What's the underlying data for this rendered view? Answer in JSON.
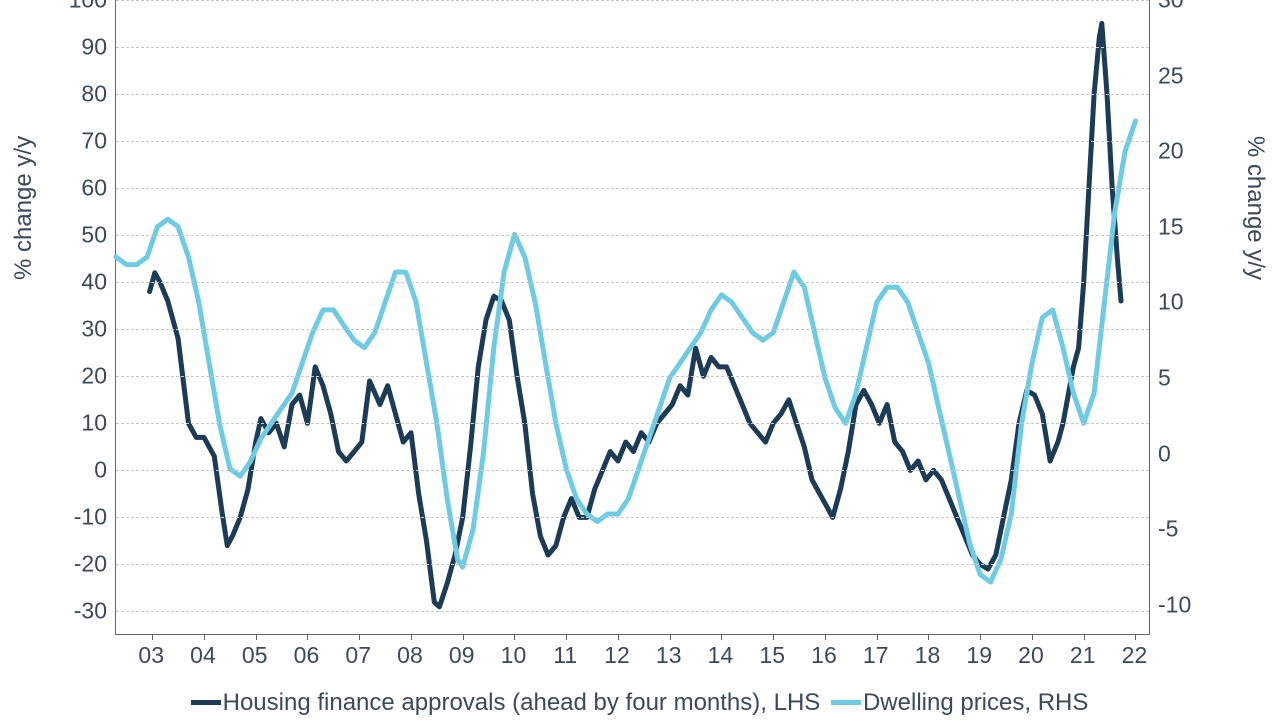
{
  "chart": {
    "type": "line-dual-axis",
    "background_color": "#ffffff",
    "grid_color": "#c8c8c8",
    "axis_color": "#666666",
    "text_color": "#3a4a58",
    "tick_fontsize": 23,
    "axis_label_fontsize": 24,
    "legend_fontsize": 24,
    "line_width": 5,
    "font_family": "Segoe UI, Verdana, Arial, sans-serif",
    "x_axis": {
      "min": 2002.3,
      "max": 2022.3,
      "ticks": [
        "03",
        "04",
        "05",
        "06",
        "07",
        "08",
        "09",
        "10",
        "11",
        "12",
        "13",
        "14",
        "15",
        "16",
        "17",
        "18",
        "19",
        "20",
        "21",
        "22"
      ],
      "tick_positions": [
        2003,
        2004,
        2005,
        2006,
        2007,
        2008,
        2009,
        2010,
        2011,
        2012,
        2013,
        2014,
        2015,
        2016,
        2017,
        2018,
        2019,
        2020,
        2021,
        2022
      ]
    },
    "y_left": {
      "label": "% change y/y",
      "min": -35,
      "max": 100,
      "ticks": [
        -30,
        -20,
        -10,
        0,
        10,
        20,
        30,
        40,
        50,
        60,
        70,
        80,
        90,
        100
      ]
    },
    "y_right": {
      "label": "% change y/y",
      "min": -12,
      "max": 30,
      "ticks": [
        -10,
        -5,
        0,
        5,
        10,
        15,
        20,
        25,
        30
      ]
    },
    "series": [
      {
        "name": "Housing finance approvals (ahead by four months), LHS",
        "color": "#1b3b57",
        "axis": "left",
        "data": [
          [
            2002.95,
            38
          ],
          [
            2003.05,
            42
          ],
          [
            2003.15,
            40
          ],
          [
            2003.3,
            36
          ],
          [
            2003.5,
            28
          ],
          [
            2003.7,
            10
          ],
          [
            2003.85,
            7
          ],
          [
            2004.0,
            7
          ],
          [
            2004.2,
            3
          ],
          [
            2004.35,
            -9
          ],
          [
            2004.45,
            -16
          ],
          [
            2004.55,
            -14
          ],
          [
            2004.7,
            -10
          ],
          [
            2004.85,
            -4
          ],
          [
            2005.0,
            6
          ],
          [
            2005.1,
            11
          ],
          [
            2005.25,
            8
          ],
          [
            2005.4,
            10
          ],
          [
            2005.55,
            5
          ],
          [
            2005.7,
            14
          ],
          [
            2005.85,
            16
          ],
          [
            2006.0,
            10
          ],
          [
            2006.15,
            22
          ],
          [
            2006.3,
            18
          ],
          [
            2006.45,
            12
          ],
          [
            2006.6,
            4
          ],
          [
            2006.75,
            2
          ],
          [
            2006.9,
            4
          ],
          [
            2007.05,
            6
          ],
          [
            2007.2,
            19
          ],
          [
            2007.4,
            14
          ],
          [
            2007.55,
            18
          ],
          [
            2007.7,
            12
          ],
          [
            2007.85,
            6
          ],
          [
            2008.0,
            8
          ],
          [
            2008.15,
            -5
          ],
          [
            2008.3,
            -15
          ],
          [
            2008.45,
            -28
          ],
          [
            2008.55,
            -29
          ],
          [
            2008.7,
            -24
          ],
          [
            2008.85,
            -18
          ],
          [
            2009.0,
            -10
          ],
          [
            2009.15,
            5
          ],
          [
            2009.3,
            22
          ],
          [
            2009.45,
            32
          ],
          [
            2009.6,
            37
          ],
          [
            2009.75,
            36
          ],
          [
            2009.9,
            32
          ],
          [
            2010.05,
            20
          ],
          [
            2010.2,
            10
          ],
          [
            2010.35,
            -5
          ],
          [
            2010.5,
            -14
          ],
          [
            2010.65,
            -18
          ],
          [
            2010.8,
            -16
          ],
          [
            2010.95,
            -10
          ],
          [
            2011.1,
            -6
          ],
          [
            2011.25,
            -10
          ],
          [
            2011.4,
            -10
          ],
          [
            2011.55,
            -4
          ],
          [
            2011.7,
            0
          ],
          [
            2011.85,
            4
          ],
          [
            2012.0,
            2
          ],
          [
            2012.15,
            6
          ],
          [
            2012.3,
            4
          ],
          [
            2012.45,
            8
          ],
          [
            2012.6,
            6
          ],
          [
            2012.75,
            10
          ],
          [
            2012.9,
            12
          ],
          [
            2013.05,
            14
          ],
          [
            2013.2,
            18
          ],
          [
            2013.35,
            16
          ],
          [
            2013.5,
            26
          ],
          [
            2013.65,
            20
          ],
          [
            2013.8,
            24
          ],
          [
            2013.95,
            22
          ],
          [
            2014.1,
            22
          ],
          [
            2014.25,
            18
          ],
          [
            2014.4,
            14
          ],
          [
            2014.55,
            10
          ],
          [
            2014.7,
            8
          ],
          [
            2014.85,
            6
          ],
          [
            2015.0,
            10
          ],
          [
            2015.15,
            12
          ],
          [
            2015.3,
            15
          ],
          [
            2015.45,
            10
          ],
          [
            2015.6,
            5
          ],
          [
            2015.75,
            -2
          ],
          [
            2015.9,
            -5
          ],
          [
            2016.05,
            -8
          ],
          [
            2016.15,
            -10
          ],
          [
            2016.3,
            -4
          ],
          [
            2016.45,
            4
          ],
          [
            2016.6,
            14
          ],
          [
            2016.75,
            17
          ],
          [
            2016.9,
            14
          ],
          [
            2017.05,
            10
          ],
          [
            2017.2,
            14
          ],
          [
            2017.35,
            6
          ],
          [
            2017.5,
            4
          ],
          [
            2017.65,
            0
          ],
          [
            2017.8,
            2
          ],
          [
            2017.95,
            -2
          ],
          [
            2018.1,
            0
          ],
          [
            2018.25,
            -2
          ],
          [
            2018.4,
            -6
          ],
          [
            2018.55,
            -10
          ],
          [
            2018.7,
            -14
          ],
          [
            2018.85,
            -18
          ],
          [
            2019.0,
            -20
          ],
          [
            2019.15,
            -21
          ],
          [
            2019.3,
            -18
          ],
          [
            2019.45,
            -10
          ],
          [
            2019.6,
            -2
          ],
          [
            2019.75,
            10
          ],
          [
            2019.9,
            17
          ],
          [
            2020.05,
            16
          ],
          [
            2020.2,
            12
          ],
          [
            2020.35,
            2
          ],
          [
            2020.5,
            6
          ],
          [
            2020.6,
            10
          ],
          [
            2020.7,
            16
          ],
          [
            2020.8,
            22
          ],
          [
            2020.9,
            26
          ],
          [
            2021.0,
            40
          ],
          [
            2021.1,
            60
          ],
          [
            2021.2,
            80
          ],
          [
            2021.3,
            92
          ],
          [
            2021.35,
            95
          ],
          [
            2021.45,
            80
          ],
          [
            2021.55,
            60
          ],
          [
            2021.65,
            45
          ],
          [
            2021.72,
            36
          ]
        ]
      },
      {
        "name": "Dwelling prices, RHS",
        "color": "#6fcbe3",
        "axis": "right",
        "data": [
          [
            2002.3,
            13
          ],
          [
            2002.5,
            12.5
          ],
          [
            2002.7,
            12.5
          ],
          [
            2002.9,
            13
          ],
          [
            2003.1,
            15
          ],
          [
            2003.3,
            15.5
          ],
          [
            2003.5,
            15
          ],
          [
            2003.7,
            13
          ],
          [
            2003.9,
            10
          ],
          [
            2004.1,
            6
          ],
          [
            2004.3,
            2
          ],
          [
            2004.5,
            -1
          ],
          [
            2004.7,
            -1.5
          ],
          [
            2004.9,
            -0.5
          ],
          [
            2005.1,
            1
          ],
          [
            2005.3,
            2
          ],
          [
            2005.5,
            3
          ],
          [
            2005.7,
            4
          ],
          [
            2005.9,
            6
          ],
          [
            2006.1,
            8
          ],
          [
            2006.3,
            9.5
          ],
          [
            2006.5,
            9.5
          ],
          [
            2006.7,
            8.5
          ],
          [
            2006.9,
            7.5
          ],
          [
            2007.1,
            7
          ],
          [
            2007.3,
            8
          ],
          [
            2007.5,
            10
          ],
          [
            2007.7,
            12
          ],
          [
            2007.9,
            12
          ],
          [
            2008.1,
            10
          ],
          [
            2008.3,
            6
          ],
          [
            2008.5,
            2
          ],
          [
            2008.7,
            -3
          ],
          [
            2008.9,
            -7
          ],
          [
            2009.0,
            -7.5
          ],
          [
            2009.2,
            -5
          ],
          [
            2009.4,
            0
          ],
          [
            2009.6,
            7
          ],
          [
            2009.8,
            12
          ],
          [
            2010.0,
            14.5
          ],
          [
            2010.2,
            13
          ],
          [
            2010.4,
            10
          ],
          [
            2010.6,
            6
          ],
          [
            2010.8,
            2
          ],
          [
            2011.0,
            -1
          ],
          [
            2011.2,
            -3
          ],
          [
            2011.4,
            -4
          ],
          [
            2011.6,
            -4.5
          ],
          [
            2011.8,
            -4
          ],
          [
            2012.0,
            -4
          ],
          [
            2012.2,
            -3
          ],
          [
            2012.4,
            -1
          ],
          [
            2012.6,
            1
          ],
          [
            2012.8,
            3
          ],
          [
            2013.0,
            5
          ],
          [
            2013.2,
            6
          ],
          [
            2013.4,
            7
          ],
          [
            2013.6,
            8
          ],
          [
            2013.8,
            9.5
          ],
          [
            2014.0,
            10.5
          ],
          [
            2014.2,
            10
          ],
          [
            2014.4,
            9
          ],
          [
            2014.6,
            8
          ],
          [
            2014.8,
            7.5
          ],
          [
            2015.0,
            8
          ],
          [
            2015.2,
            10
          ],
          [
            2015.4,
            12
          ],
          [
            2015.6,
            11
          ],
          [
            2015.8,
            8
          ],
          [
            2016.0,
            5
          ],
          [
            2016.2,
            3
          ],
          [
            2016.4,
            2
          ],
          [
            2016.6,
            4
          ],
          [
            2016.8,
            7
          ],
          [
            2017.0,
            10
          ],
          [
            2017.2,
            11
          ],
          [
            2017.4,
            11
          ],
          [
            2017.6,
            10
          ],
          [
            2017.8,
            8
          ],
          [
            2018.0,
            6
          ],
          [
            2018.2,
            3
          ],
          [
            2018.4,
            0
          ],
          [
            2018.6,
            -3
          ],
          [
            2018.8,
            -6
          ],
          [
            2019.0,
            -8
          ],
          [
            2019.2,
            -8.5
          ],
          [
            2019.4,
            -7
          ],
          [
            2019.6,
            -4
          ],
          [
            2019.8,
            2
          ],
          [
            2020.0,
            6
          ],
          [
            2020.2,
            9
          ],
          [
            2020.4,
            9.5
          ],
          [
            2020.6,
            7
          ],
          [
            2020.8,
            4
          ],
          [
            2021.0,
            2
          ],
          [
            2021.2,
            4
          ],
          [
            2021.4,
            10
          ],
          [
            2021.6,
            16
          ],
          [
            2021.8,
            20
          ],
          [
            2022.0,
            22
          ]
        ]
      }
    ],
    "legend": {
      "position": "bottom",
      "items": [
        {
          "label": "Housing finance approvals (ahead by four months), LHS",
          "color": "#1b3b57"
        },
        {
          "label": "Dwelling prices, RHS",
          "color": "#6fcbe3"
        }
      ]
    }
  }
}
